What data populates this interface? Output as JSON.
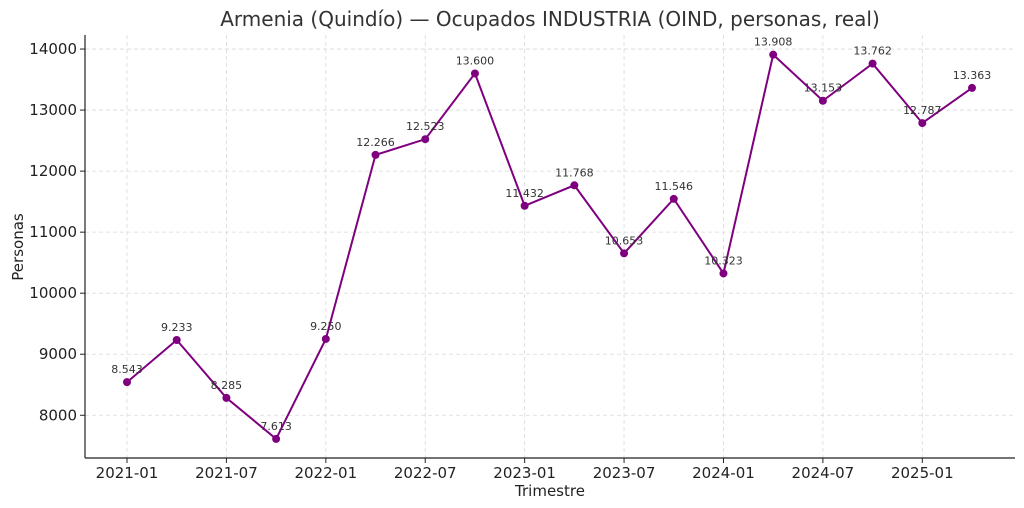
{
  "chart_data": {
    "type": "line",
    "title": "Armenia (Quindío) — Ocupados INDUSTRIA (OIND, personas, real)",
    "xlabel": "Trimestre",
    "ylabel": "Personas",
    "x": [
      "2021-01",
      "2021-04",
      "2021-07",
      "2021-10",
      "2022-01",
      "2022-04",
      "2022-07",
      "2022-10",
      "2023-01",
      "2023-04",
      "2023-07",
      "2023-10",
      "2024-01",
      "2024-04",
      "2024-07",
      "2024-10",
      "2025-01",
      "2025-04"
    ],
    "series": [
      {
        "values": [
          8543,
          9233,
          8285,
          7613,
          9250,
          12266,
          12523,
          13600,
          11432,
          11768,
          10653,
          11546,
          10323,
          13908,
          13153,
          13762,
          12787,
          13363
        ],
        "point_labels": [
          "8.543",
          "9.233",
          "8.285",
          "7.613",
          "9.250",
          "12.266",
          "12.523",
          "13.600",
          "11.432",
          "11.768",
          "10.653",
          "11.546",
          "10.323",
          "13.908",
          "13.153",
          "13.762",
          "12.787",
          "13.363"
        ],
        "color": "#7f007f"
      }
    ],
    "x_ticks": [
      "2021-01",
      "2021-07",
      "2022-01",
      "2022-07",
      "2023-01",
      "2023-07",
      "2024-01",
      "2024-07",
      "2025-01"
    ],
    "y_ticks": [
      "8000",
      "9000",
      "10000",
      "11000",
      "12000",
      "13000",
      "14000"
    ],
    "ylim": [
      7300,
      14230
    ],
    "grid": true,
    "legend": "none"
  }
}
